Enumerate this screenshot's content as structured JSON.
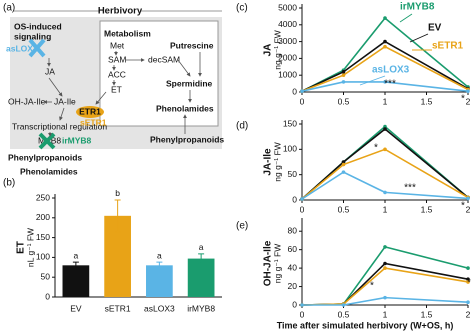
{
  "diagram": {
    "label": "(a)",
    "title": "Herbivory",
    "signaling": [
      "OS-induced",
      "signaling"
    ],
    "metabolism": "Metabolism",
    "nodes": [
      "asLOX3",
      "JA",
      "OH-JA-Ile",
      "JA-Ile",
      "Transcriptional regulation",
      "MYB8",
      "irMYB8",
      "ETR1",
      "sETR1",
      "Met",
      "SAM",
      "ACC",
      "ET",
      "decSAM",
      "Putrescine",
      "Spermidine",
      "Phenolamides",
      "Phenylpropanoids",
      "Phenylpropanoids",
      "Phenolamides"
    ]
  },
  "chart_data": [
    {
      "type": "bar",
      "label": "(b)",
      "ylabel": "ET",
      "yunit": "nL g⁻¹ FW",
      "categories": [
        "EV",
        "sETR1",
        "asLOX3",
        "irMYB8"
      ],
      "values": [
        80,
        205,
        80,
        97
      ],
      "errors": [
        8,
        40,
        8,
        12
      ],
      "colors": [
        "#111111",
        "#e8a317",
        "#5ab4e5",
        "#1a9c6e"
      ],
      "letters": [
        "a",
        "b",
        "a",
        "a"
      ],
      "ylim": [
        0,
        250
      ],
      "yticks": [
        0,
        50,
        100,
        150,
        200,
        250
      ]
    },
    {
      "type": "line",
      "label": "(c)",
      "ylabel": "JA",
      "yunit": "ng g⁻¹ FW",
      "x": [
        0,
        0.5,
        1,
        2
      ],
      "xlim": [
        0,
        2
      ],
      "xticks": [
        0,
        0.5,
        1,
        1.5,
        2
      ],
      "ylim": [
        0,
        5000
      ],
      "yticks": [
        0,
        1000,
        2000,
        3000,
        4000,
        5000
      ],
      "series": [
        {
          "name": "irMYB8",
          "color": "#1a9c6e",
          "values": [
            50,
            1300,
            4400,
            300
          ]
        },
        {
          "name": "EV",
          "color": "#111111",
          "values": [
            50,
            1200,
            3000,
            200
          ]
        },
        {
          "name": "sETR1",
          "color": "#e8a317",
          "values": [
            50,
            1000,
            2700,
            150
          ]
        },
        {
          "name": "asLOX3",
          "color": "#5ab4e5",
          "values": [
            50,
            600,
            600,
            50
          ]
        }
      ],
      "annotations": [
        "***",
        "*"
      ]
    },
    {
      "type": "line",
      "label": "(d)",
      "ylabel": "JA-Ile",
      "yunit": "ng g⁻¹ FW",
      "x": [
        0,
        0.5,
        1,
        2
      ],
      "xlim": [
        0,
        2
      ],
      "xticks": [
        0,
        0.5,
        1,
        1.5,
        2
      ],
      "ylim": [
        0,
        150
      ],
      "yticks": [
        0,
        50,
        100,
        150
      ],
      "series": [
        {
          "color": "#1a9c6e",
          "values": [
            2,
            75,
            145,
            5
          ]
        },
        {
          "color": "#111111",
          "values": [
            2,
            75,
            140,
            5
          ]
        },
        {
          "color": "#e8a317",
          "values": [
            2,
            70,
            100,
            5
          ]
        },
        {
          "color": "#5ab4e5",
          "values": [
            2,
            55,
            15,
            3
          ]
        }
      ],
      "annotations": [
        "*",
        "***",
        "*"
      ]
    },
    {
      "type": "line",
      "label": "(e)",
      "ylabel": "OH-JA-Ile",
      "yunit": "ng g⁻¹ FW",
      "xlabel": "Time after simulated herbivory (W+OS, h)",
      "x": [
        0,
        0.5,
        1,
        2
      ],
      "xlim": [
        0,
        2
      ],
      "xticks": [
        0,
        0.5,
        1,
        1.5,
        2
      ],
      "ylim": [
        0,
        90
      ],
      "yticks": [
        0,
        20,
        40,
        60,
        80
      ],
      "series": [
        {
          "color": "#1a9c6e",
          "values": [
            0,
            1,
            63,
            40
          ]
        },
        {
          "color": "#111111",
          "values": [
            0,
            1,
            45,
            28
          ]
        },
        {
          "color": "#e8a317",
          "values": [
            0,
            1,
            40,
            25
          ]
        },
        {
          "color": "#5ab4e5",
          "values": [
            0,
            0,
            8,
            3
          ]
        }
      ],
      "annotations": [
        "*",
        "*"
      ]
    }
  ]
}
